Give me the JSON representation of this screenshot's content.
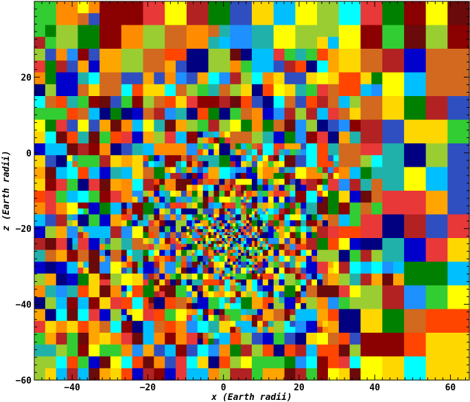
{
  "chart_data": {
    "type": "heatmap",
    "title": "",
    "xlabel": "x (Earth radii)",
    "ylabel": "z (Earth radii)",
    "xlim": [
      -50,
      65
    ],
    "ylim": [
      -60,
      40
    ],
    "x_major_ticks": [
      -40,
      -20,
      0,
      20,
      40,
      60
    ],
    "x_tick_labels": [
      "−40",
      "−20",
      "0",
      "20",
      "40",
      "60"
    ],
    "y_major_ticks": [
      -60,
      -40,
      -20,
      0,
      20
    ],
    "y_tick_labels": [
      "−60",
      "−40",
      "−20",
      "0",
      "20"
    ],
    "grid": false,
    "colormap": [
      "#000080",
      "#0000cd",
      "#1e90ff",
      "#00bfff",
      "#00ffff",
      "#20b2aa",
      "#008000",
      "#32cd32",
      "#9acd32",
      "#ffff00",
      "#ffd700",
      "#ffa500",
      "#ff8c00",
      "#ff4500",
      "#e83838",
      "#b22222",
      "#8b0000",
      "#6a0a0a",
      "#2f4fc0",
      "#d2691e"
    ],
    "description": "Adaptive-mesh block map: each block filled with a random color; block size is coarse near the right edge and finest near x≈0, z≈−20."
  }
}
